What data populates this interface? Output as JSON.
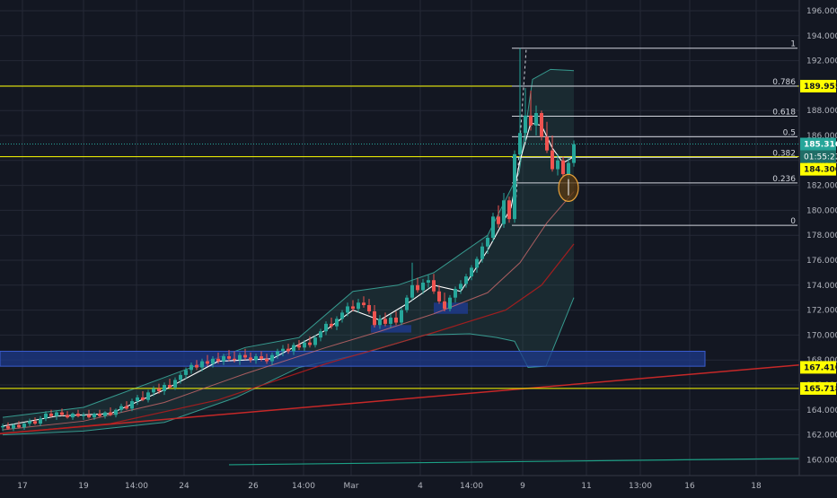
{
  "chart_data": {
    "type": "candlestick",
    "title": "",
    "xlabel": "",
    "ylabel": "",
    "ylim": [
      159,
      197
    ],
    "grid": true,
    "colors": {
      "background": "#131722",
      "grid": "#242836",
      "up": "#26a69a",
      "down": "#ef5350",
      "yellow": "#ffff00",
      "fib": "#d1d4dc",
      "cloud": "#2f5f5a",
      "zone": "#1e3a8a",
      "red_trend": "#c62828",
      "green_trend": "#1ca085"
    },
    "y_ticks": [
      "196.000",
      "194.000",
      "192.000",
      "190.000",
      "188.000",
      "186.000",
      "184.000",
      "182.000",
      "180.000",
      "178.000",
      "176.000",
      "174.000",
      "172.000",
      "170.000",
      "168.000",
      "166.000",
      "164.000",
      "162.000",
      "160.000"
    ],
    "y_tick_values": [
      196,
      194,
      192,
      190,
      188,
      186,
      184,
      182,
      180,
      178,
      176,
      174,
      172,
      170,
      168,
      166,
      164,
      162,
      160
    ],
    "x_ticks": [
      "17",
      "19",
      "14:00",
      "24",
      "26",
      "14:00",
      "Mar",
      "4",
      "14:00",
      "9",
      "11",
      "13:00",
      "16",
      "18"
    ],
    "fib_levels": [
      {
        "label": "1",
        "value": 193.0
      },
      {
        "label": "0.786",
        "value": 189.955
      },
      {
        "label": "0.618",
        "value": 187.55
      },
      {
        "label": "0.5",
        "value": 185.9
      },
      {
        "label": "0.382",
        "value": 184.25
      },
      {
        "label": "0.236",
        "value": 182.2
      },
      {
        "label": "0",
        "value": 178.8
      }
    ],
    "horizontal_lines": [
      {
        "value": 189.955,
        "label": "189.955"
      },
      {
        "value": 184.3,
        "label": "184.300"
      },
      {
        "value": 165.718,
        "label": "165.718"
      }
    ],
    "zone": {
      "from": 167.5,
      "to": 168.7,
      "label": "167.410"
    },
    "last_price": {
      "value": 185.316,
      "label": "185.316",
      "countdown": "01:55:23"
    },
    "trend_red": [
      [
        0,
        162.1
      ],
      [
        890,
        167.6
      ]
    ],
    "trend_green": [
      [
        255,
        159.6
      ],
      [
        890,
        160.1
      ]
    ],
    "candles": [
      {
        "x": 0,
        "o": 162.6,
        "h": 162.9,
        "l": 162.3,
        "c": 162.7
      },
      {
        "x": 6,
        "o": 162.7,
        "h": 163.0,
        "l": 162.4,
        "c": 162.5
      },
      {
        "x": 12,
        "o": 162.5,
        "h": 162.9,
        "l": 162.3,
        "c": 162.8
      },
      {
        "x": 18,
        "o": 162.8,
        "h": 163.1,
        "l": 162.5,
        "c": 162.6
      },
      {
        "x": 24,
        "o": 162.6,
        "h": 163.0,
        "l": 162.4,
        "c": 162.9
      },
      {
        "x": 30,
        "o": 162.9,
        "h": 163.3,
        "l": 162.7,
        "c": 163.1
      },
      {
        "x": 36,
        "o": 163.1,
        "h": 163.4,
        "l": 162.8,
        "c": 162.9
      },
      {
        "x": 42,
        "o": 162.9,
        "h": 163.5,
        "l": 162.7,
        "c": 163.3
      },
      {
        "x": 48,
        "o": 163.3,
        "h": 163.9,
        "l": 163.1,
        "c": 163.7
      },
      {
        "x": 54,
        "o": 163.7,
        "h": 164.0,
        "l": 163.4,
        "c": 163.5
      },
      {
        "x": 60,
        "o": 163.5,
        "h": 163.9,
        "l": 163.2,
        "c": 163.8
      },
      {
        "x": 66,
        "o": 163.8,
        "h": 164.1,
        "l": 163.5,
        "c": 163.6
      },
      {
        "x": 72,
        "o": 163.6,
        "h": 163.9,
        "l": 163.3,
        "c": 163.4
      },
      {
        "x": 78,
        "o": 163.4,
        "h": 163.8,
        "l": 163.2,
        "c": 163.7
      },
      {
        "x": 84,
        "o": 163.7,
        "h": 164.0,
        "l": 163.4,
        "c": 163.5
      },
      {
        "x": 90,
        "o": 163.5,
        "h": 163.8,
        "l": 163.2,
        "c": 163.6
      },
      {
        "x": 96,
        "o": 163.6,
        "h": 164.0,
        "l": 163.3,
        "c": 163.4
      },
      {
        "x": 102,
        "o": 163.4,
        "h": 163.8,
        "l": 163.2,
        "c": 163.7
      },
      {
        "x": 108,
        "o": 163.7,
        "h": 164.0,
        "l": 163.4,
        "c": 163.5
      },
      {
        "x": 114,
        "o": 163.5,
        "h": 163.9,
        "l": 163.3,
        "c": 163.8
      },
      {
        "x": 120,
        "o": 163.8,
        "h": 164.2,
        "l": 163.5,
        "c": 163.6
      },
      {
        "x": 126,
        "o": 163.6,
        "h": 164.1,
        "l": 163.4,
        "c": 164.0
      },
      {
        "x": 132,
        "o": 164.0,
        "h": 164.5,
        "l": 163.8,
        "c": 164.3
      },
      {
        "x": 138,
        "o": 164.3,
        "h": 164.7,
        "l": 164.0,
        "c": 164.1
      },
      {
        "x": 144,
        "o": 164.1,
        "h": 164.9,
        "l": 163.9,
        "c": 164.7
      },
      {
        "x": 150,
        "o": 164.7,
        "h": 165.2,
        "l": 164.4,
        "c": 165.0
      },
      {
        "x": 156,
        "o": 165.0,
        "h": 165.5,
        "l": 164.7,
        "c": 164.8
      },
      {
        "x": 162,
        "o": 164.8,
        "h": 165.6,
        "l": 164.6,
        "c": 165.4
      },
      {
        "x": 168,
        "o": 165.4,
        "h": 165.9,
        "l": 165.1,
        "c": 165.7
      },
      {
        "x": 174,
        "o": 165.7,
        "h": 166.1,
        "l": 165.3,
        "c": 165.5
      },
      {
        "x": 180,
        "o": 165.5,
        "h": 166.2,
        "l": 165.2,
        "c": 166.0
      },
      {
        "x": 186,
        "o": 166.0,
        "h": 166.5,
        "l": 165.7,
        "c": 165.8
      },
      {
        "x": 192,
        "o": 165.8,
        "h": 166.6,
        "l": 165.6,
        "c": 166.4
      },
      {
        "x": 198,
        "o": 166.4,
        "h": 167.0,
        "l": 166.1,
        "c": 166.8
      },
      {
        "x": 204,
        "o": 166.8,
        "h": 167.4,
        "l": 166.5,
        "c": 167.2
      },
      {
        "x": 210,
        "o": 167.2,
        "h": 167.8,
        "l": 166.9,
        "c": 167.6
      },
      {
        "x": 216,
        "o": 167.6,
        "h": 168.0,
        "l": 167.2,
        "c": 167.4
      },
      {
        "x": 222,
        "o": 167.4,
        "h": 168.1,
        "l": 167.1,
        "c": 167.9
      },
      {
        "x": 228,
        "o": 167.9,
        "h": 168.4,
        "l": 167.5,
        "c": 167.7
      },
      {
        "x": 234,
        "o": 167.7,
        "h": 168.3,
        "l": 167.4,
        "c": 168.1
      },
      {
        "x": 240,
        "o": 168.1,
        "h": 168.6,
        "l": 167.7,
        "c": 167.9
      },
      {
        "x": 246,
        "o": 167.9,
        "h": 168.5,
        "l": 167.6,
        "c": 168.3
      },
      {
        "x": 252,
        "o": 168.3,
        "h": 168.8,
        "l": 167.9,
        "c": 168.1
      },
      {
        "x": 258,
        "o": 168.1,
        "h": 168.7,
        "l": 167.8,
        "c": 168.0
      },
      {
        "x": 264,
        "o": 168.0,
        "h": 168.6,
        "l": 167.6,
        "c": 168.4
      },
      {
        "x": 270,
        "o": 168.4,
        "h": 168.9,
        "l": 168.0,
        "c": 168.2
      },
      {
        "x": 276,
        "o": 168.2,
        "h": 168.6,
        "l": 167.8,
        "c": 168.0
      },
      {
        "x": 282,
        "o": 168.0,
        "h": 168.5,
        "l": 167.7,
        "c": 168.3
      },
      {
        "x": 288,
        "o": 168.3,
        "h": 168.7,
        "l": 167.9,
        "c": 168.1
      },
      {
        "x": 294,
        "o": 168.1,
        "h": 168.5,
        "l": 167.7,
        "c": 167.9
      },
      {
        "x": 300,
        "o": 167.9,
        "h": 168.6,
        "l": 167.6,
        "c": 168.4
      },
      {
        "x": 306,
        "o": 168.4,
        "h": 168.9,
        "l": 168.1,
        "c": 168.7
      },
      {
        "x": 312,
        "o": 168.7,
        "h": 169.2,
        "l": 168.3,
        "c": 168.9
      },
      {
        "x": 318,
        "o": 168.9,
        "h": 169.3,
        "l": 168.5,
        "c": 168.7
      },
      {
        "x": 324,
        "o": 168.7,
        "h": 169.4,
        "l": 168.4,
        "c": 169.2
      },
      {
        "x": 330,
        "o": 169.2,
        "h": 169.6,
        "l": 168.8,
        "c": 169.0
      },
      {
        "x": 336,
        "o": 169.0,
        "h": 169.6,
        "l": 168.7,
        "c": 169.4
      },
      {
        "x": 342,
        "o": 169.4,
        "h": 169.9,
        "l": 169.0,
        "c": 169.2
      },
      {
        "x": 348,
        "o": 169.2,
        "h": 170.0,
        "l": 169.0,
        "c": 169.8
      },
      {
        "x": 354,
        "o": 169.8,
        "h": 170.5,
        "l": 169.5,
        "c": 170.3
      },
      {
        "x": 360,
        "o": 170.3,
        "h": 171.1,
        "l": 170.0,
        "c": 170.9
      },
      {
        "x": 366,
        "o": 170.9,
        "h": 171.4,
        "l": 170.5,
        "c": 170.7
      },
      {
        "x": 372,
        "o": 170.7,
        "h": 171.5,
        "l": 170.4,
        "c": 171.3
      },
      {
        "x": 378,
        "o": 171.3,
        "h": 172.0,
        "l": 171.0,
        "c": 171.8
      },
      {
        "x": 384,
        "o": 171.8,
        "h": 172.6,
        "l": 171.5,
        "c": 172.3
      },
      {
        "x": 390,
        "o": 172.3,
        "h": 172.8,
        "l": 171.9,
        "c": 172.1
      },
      {
        "x": 396,
        "o": 172.1,
        "h": 172.9,
        "l": 171.8,
        "c": 172.6
      },
      {
        "x": 402,
        "o": 172.6,
        "h": 173.1,
        "l": 172.2,
        "c": 172.4
      },
      {
        "x": 408,
        "o": 172.4,
        "h": 172.9,
        "l": 171.7,
        "c": 171.9
      },
      {
        "x": 414,
        "o": 171.9,
        "h": 172.4,
        "l": 170.6,
        "c": 170.8
      },
      {
        "x": 420,
        "o": 170.8,
        "h": 171.6,
        "l": 170.5,
        "c": 171.3
      },
      {
        "x": 426,
        "o": 171.3,
        "h": 171.8,
        "l": 170.7,
        "c": 170.9
      },
      {
        "x": 432,
        "o": 170.9,
        "h": 171.7,
        "l": 170.6,
        "c": 171.4
      },
      {
        "x": 438,
        "o": 171.4,
        "h": 171.9,
        "l": 170.8,
        "c": 171.0
      },
      {
        "x": 444,
        "o": 171.0,
        "h": 172.2,
        "l": 170.8,
        "c": 172.0
      },
      {
        "x": 450,
        "o": 172.0,
        "h": 173.2,
        "l": 171.8,
        "c": 173.0
      },
      {
        "x": 456,
        "o": 173.0,
        "h": 175.8,
        "l": 172.8,
        "c": 174.0
      },
      {
        "x": 462,
        "o": 174.0,
        "h": 174.6,
        "l": 173.4,
        "c": 173.6
      },
      {
        "x": 468,
        "o": 173.6,
        "h": 174.5,
        "l": 173.3,
        "c": 174.2
      },
      {
        "x": 474,
        "o": 174.2,
        "h": 174.8,
        "l": 173.8,
        "c": 174.4
      },
      {
        "x": 480,
        "o": 174.4,
        "h": 174.9,
        "l": 173.3,
        "c": 173.5
      },
      {
        "x": 486,
        "o": 173.5,
        "h": 174.0,
        "l": 172.5,
        "c": 172.7
      },
      {
        "x": 492,
        "o": 172.7,
        "h": 173.4,
        "l": 171.9,
        "c": 172.1
      },
      {
        "x": 498,
        "o": 172.1,
        "h": 173.2,
        "l": 171.9,
        "c": 173.0
      },
      {
        "x": 504,
        "o": 173.0,
        "h": 173.9,
        "l": 172.6,
        "c": 173.7
      },
      {
        "x": 510,
        "o": 173.7,
        "h": 174.4,
        "l": 173.3,
        "c": 174.1
      },
      {
        "x": 516,
        "o": 174.1,
        "h": 174.9,
        "l": 173.8,
        "c": 174.7
      },
      {
        "x": 522,
        "o": 174.7,
        "h": 175.6,
        "l": 174.4,
        "c": 175.4
      },
      {
        "x": 528,
        "o": 175.4,
        "h": 176.3,
        "l": 175.0,
        "c": 176.1
      },
      {
        "x": 534,
        "o": 176.1,
        "h": 177.4,
        "l": 175.8,
        "c": 177.1
      },
      {
        "x": 540,
        "o": 177.1,
        "h": 178.0,
        "l": 176.5,
        "c": 177.8
      },
      {
        "x": 546,
        "o": 177.8,
        "h": 179.8,
        "l": 177.5,
        "c": 179.5
      },
      {
        "x": 552,
        "o": 179.5,
        "h": 180.4,
        "l": 178.6,
        "c": 178.9
      },
      {
        "x": 558,
        "o": 178.9,
        "h": 181.4,
        "l": 178.6,
        "c": 180.8
      },
      {
        "x": 564,
        "o": 180.8,
        "h": 181.1,
        "l": 179.0,
        "c": 179.3
      },
      {
        "x": 570,
        "o": 179.3,
        "h": 184.8,
        "l": 179.0,
        "c": 184.5
      },
      {
        "x": 576,
        "o": 184.5,
        "h": 193.0,
        "l": 184.0,
        "c": 186.2
      },
      {
        "x": 582,
        "o": 186.2,
        "h": 189.8,
        "l": 185.5,
        "c": 187.6
      },
      {
        "x": 588,
        "o": 187.6,
        "h": 189.6,
        "l": 186.4,
        "c": 186.8
      },
      {
        "x": 594,
        "o": 186.8,
        "h": 188.4,
        "l": 186.0,
        "c": 187.8
      },
      {
        "x": 600,
        "o": 187.8,
        "h": 188.0,
        "l": 185.6,
        "c": 185.9
      },
      {
        "x": 606,
        "o": 185.9,
        "h": 187.1,
        "l": 184.6,
        "c": 184.8
      },
      {
        "x": 612,
        "o": 184.8,
        "h": 186.0,
        "l": 183.1,
        "c": 183.3
      },
      {
        "x": 618,
        "o": 183.3,
        "h": 184.5,
        "l": 182.8,
        "c": 184.0
      },
      {
        "x": 624,
        "o": 184.0,
        "h": 184.3,
        "l": 182.6,
        "c": 182.9
      },
      {
        "x": 630,
        "o": 182.9,
        "h": 184.2,
        "l": 182.5,
        "c": 183.8
      },
      {
        "x": 636,
        "o": 183.8,
        "h": 185.6,
        "l": 183.5,
        "c": 185.3
      }
    ],
    "overlays": {
      "ma_white": [
        [
          0,
          162.7
        ],
        [
          60,
          163.5
        ],
        [
          120,
          163.7
        ],
        [
          180,
          165.6
        ],
        [
          240,
          167.9
        ],
        [
          300,
          168.1
        ],
        [
          360,
          170.4
        ],
        [
          390,
          172.0
        ],
        [
          420,
          171.2
        ],
        [
          450,
          172.5
        ],
        [
          480,
          174.0
        ],
        [
          510,
          173.5
        ],
        [
          540,
          176.8
        ],
        [
          566,
          180.2
        ],
        [
          576,
          184.0
        ],
        [
          588,
          187.0
        ],
        [
          600,
          186.8
        ],
        [
          612,
          185.0
        ],
        [
          624,
          183.8
        ],
        [
          636,
          184.3
        ]
      ],
      "ma_red1": [
        [
          0,
          162.4
        ],
        [
          90,
          163.1
        ],
        [
          180,
          164.6
        ],
        [
          270,
          166.9
        ],
        [
          360,
          169.0
        ],
        [
          420,
          170.3
        ],
        [
          480,
          171.7
        ],
        [
          540,
          173.4
        ],
        [
          576,
          175.8
        ],
        [
          606,
          179.0
        ],
        [
          636,
          181.5
        ]
      ],
      "ma_red2": [
        [
          0,
          162.1
        ],
        [
          120,
          162.9
        ],
        [
          240,
          164.8
        ],
        [
          360,
          167.7
        ],
        [
          480,
          170.2
        ],
        [
          560,
          172.0
        ],
        [
          600,
          174.0
        ],
        [
          636,
          177.3
        ]
      ],
      "bb_upper": [
        [
          0,
          163.4
        ],
        [
          90,
          164.2
        ],
        [
          180,
          166.6
        ],
        [
          270,
          169.0
        ],
        [
          330,
          169.8
        ],
        [
          390,
          173.5
        ],
        [
          440,
          174.0
        ],
        [
          480,
          175.0
        ],
        [
          540,
          178.0
        ],
        [
          575,
          183.0
        ],
        [
          590,
          190.5
        ],
        [
          610,
          191.3
        ],
        [
          636,
          191.2
        ]
      ],
      "bb_lower": [
        [
          0,
          162.0
        ],
        [
          90,
          162.3
        ],
        [
          180,
          163.0
        ],
        [
          260,
          165.0
        ],
        [
          330,
          167.4
        ],
        [
          400,
          168.5
        ],
        [
          470,
          170.0
        ],
        [
          520,
          170.1
        ],
        [
          550,
          169.8
        ],
        [
          570,
          169.5
        ],
        [
          585,
          167.4
        ],
        [
          605,
          167.5
        ],
        [
          636,
          173.0
        ]
      ]
    }
  }
}
